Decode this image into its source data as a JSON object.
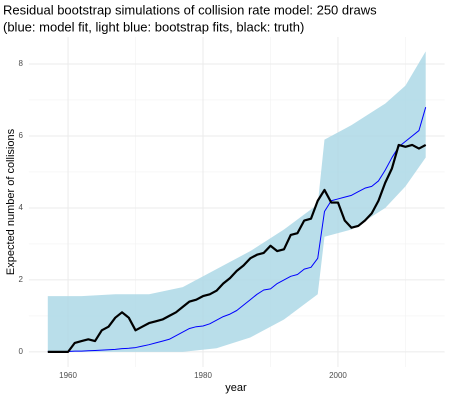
{
  "chart_data": {
    "type": "line",
    "title": "Residual bootstrap simulations of collision rate model: 250 draws",
    "subtitle": "(blue: model fit, light blue: bootstrap fits, black: truth)",
    "x_label": "year",
    "y_label": "Expected number of collisions",
    "x": [
      1957,
      1958,
      1959,
      1960,
      1961,
      1962,
      1963,
      1964,
      1965,
      1966,
      1967,
      1968,
      1969,
      1970,
      1971,
      1972,
      1973,
      1974,
      1975,
      1976,
      1977,
      1978,
      1979,
      1980,
      1981,
      1982,
      1983,
      1984,
      1985,
      1986,
      1987,
      1988,
      1989,
      1990,
      1991,
      1992,
      1993,
      1994,
      1995,
      1996,
      1997,
      1998,
      1999,
      2000,
      2001,
      2002,
      2003,
      2004,
      2005,
      2006,
      2007,
      2008,
      2009,
      2010,
      2011,
      2012,
      2013
    ],
    "series": [
      {
        "color": "#0000ff",
        "width": 1,
        "values": [
          0.01,
          0.01,
          0.01,
          0.01,
          0.02,
          0.02,
          0.03,
          0.04,
          0.05,
          0.06,
          0.07,
          0.09,
          0.1,
          0.12,
          0.16,
          0.2,
          0.25,
          0.3,
          0.35,
          0.45,
          0.55,
          0.65,
          0.7,
          0.72,
          0.78,
          0.88,
          0.98,
          1.05,
          1.15,
          1.3,
          1.45,
          1.6,
          1.72,
          1.75,
          1.9,
          2.0,
          2.1,
          2.15,
          2.3,
          2.35,
          2.6,
          3.9,
          4.2,
          4.25,
          4.3,
          4.35,
          4.45,
          4.55,
          4.6,
          4.75,
          5.05,
          5.4,
          5.7,
          5.85,
          6.0,
          6.15,
          6.8
        ]
      },
      {
        "color": "#000000",
        "width": 2.2,
        "values": [
          0,
          0,
          0,
          0,
          0.25,
          0.3,
          0.35,
          0.3,
          0.6,
          0.7,
          0.95,
          1.1,
          0.95,
          0.6,
          0.7,
          0.8,
          0.85,
          0.9,
          1.0,
          1.1,
          1.25,
          1.4,
          1.45,
          1.55,
          1.6,
          1.7,
          1.9,
          2.05,
          2.25,
          2.4,
          2.6,
          2.7,
          2.75,
          2.95,
          2.8,
          2.85,
          3.25,
          3.3,
          3.65,
          3.7,
          4.2,
          4.5,
          4.15,
          4.15,
          3.65,
          3.45,
          3.5,
          3.65,
          3.85,
          4.2,
          4.7,
          5.1,
          5.75,
          5.7,
          5.75,
          5.65,
          5.75
        ]
      }
    ],
    "band": {
      "color": "#add8e6",
      "x": [
        1957,
        1962,
        1967,
        1972,
        1977,
        1982,
        1987,
        1992,
        1997,
        1998,
        2002,
        2007,
        2010,
        2013
      ],
      "lower": [
        0,
        0,
        0,
        0,
        0,
        0.1,
        0.4,
        0.9,
        1.6,
        3.2,
        3.4,
        4.0,
        4.6,
        5.4
      ],
      "upper": [
        1.55,
        1.55,
        1.6,
        1.6,
        1.8,
        2.3,
        2.8,
        3.4,
        4.1,
        5.9,
        6.3,
        6.9,
        7.4,
        8.35
      ]
    },
    "xlim": [
      1954.2,
      2015.8
    ],
    "ylim": [
      -0.42,
      8.75
    ],
    "xticks": [
      1960,
      1980,
      2000
    ],
    "yticks": [
      0,
      2,
      4,
      6,
      8
    ],
    "xminor": [
      1970,
      1990,
      2010
    ],
    "yminor": [
      1,
      3,
      5,
      7
    ],
    "grid": true
  }
}
